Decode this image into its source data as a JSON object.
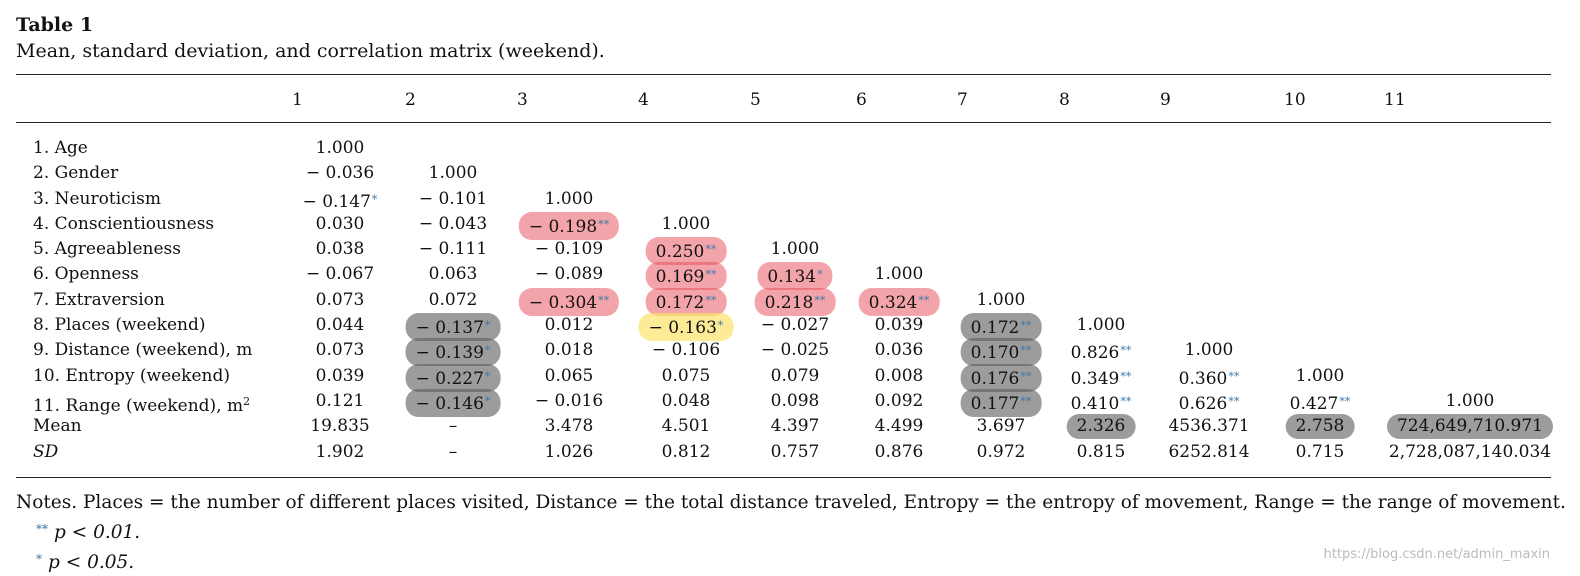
{
  "table": {
    "label": "Table 1",
    "caption": "Mean, standard deviation, and correlation matrix (weekend).",
    "columns": [
      "1",
      "2",
      "3",
      "4",
      "5",
      "6",
      "7",
      "8",
      "9",
      "10",
      "11"
    ],
    "rows": [
      {
        "label": "1. Age",
        "cells": [
          {
            "v": "1.000"
          }
        ]
      },
      {
        "label": "2. Gender",
        "cells": [
          {
            "v": "− 0.036"
          },
          {
            "v": "1.000"
          }
        ]
      },
      {
        "label": "3. Neuroticism",
        "cells": [
          {
            "v": "− 0.147",
            "sig": "*"
          },
          {
            "v": "− 0.101"
          },
          {
            "v": "1.000"
          }
        ]
      },
      {
        "label": "4. Conscientiousness",
        "cells": [
          {
            "v": "0.030"
          },
          {
            "v": "− 0.043"
          },
          {
            "v": "− 0.198",
            "sig": "**",
            "hl": "red"
          },
          {
            "v": "1.000"
          }
        ]
      },
      {
        "label": "5. Agreeableness",
        "cells": [
          {
            "v": "0.038"
          },
          {
            "v": "− 0.111"
          },
          {
            "v": "− 0.109"
          },
          {
            "v": "0.250",
            "sig": "**",
            "hl": "red"
          },
          {
            "v": "1.000"
          }
        ]
      },
      {
        "label": "6. Openness",
        "cells": [
          {
            "v": "− 0.067"
          },
          {
            "v": "0.063"
          },
          {
            "v": "− 0.089"
          },
          {
            "v": "0.169",
            "sig": "**",
            "hl": "red"
          },
          {
            "v": "0.134",
            "sig": "*",
            "hl": "red"
          },
          {
            "v": "1.000"
          }
        ]
      },
      {
        "label": "7. Extraversion",
        "cells": [
          {
            "v": "0.073"
          },
          {
            "v": "0.072"
          },
          {
            "v": "− 0.304",
            "sig": "**",
            "hl": "red"
          },
          {
            "v": "0.172",
            "sig": "**",
            "hl": "red"
          },
          {
            "v": "0.218",
            "sig": "**",
            "hl": "red"
          },
          {
            "v": "0.324",
            "sig": "**",
            "hl": "red"
          },
          {
            "v": "1.000"
          }
        ]
      },
      {
        "label": "8. Places (weekend)",
        "cells": [
          {
            "v": "0.044"
          },
          {
            "v": "− 0.137",
            "sig": "*",
            "hl": "gray"
          },
          {
            "v": "0.012"
          },
          {
            "v": "− 0.163",
            "sig": "*",
            "hl": "yellow"
          },
          {
            "v": "− 0.027"
          },
          {
            "v": "0.039"
          },
          {
            "v": "0.172",
            "sig": "**",
            "hl": "gray"
          },
          {
            "v": "1.000"
          }
        ]
      },
      {
        "label": "9. Distance (weekend), m",
        "cells": [
          {
            "v": "0.073"
          },
          {
            "v": "− 0.139",
            "sig": "*",
            "hl": "gray"
          },
          {
            "v": "0.018"
          },
          {
            "v": "− 0.106"
          },
          {
            "v": "− 0.025"
          },
          {
            "v": "0.036"
          },
          {
            "v": "0.170",
            "sig": "**",
            "hl": "gray"
          },
          {
            "v": "0.826",
            "sig": "**"
          },
          {
            "v": "1.000"
          }
        ]
      },
      {
        "label": "10. Entropy (weekend)",
        "cells": [
          {
            "v": "0.039"
          },
          {
            "v": "− 0.227",
            "sig": "*",
            "hl": "gray"
          },
          {
            "v": "0.065"
          },
          {
            "v": "0.075"
          },
          {
            "v": "0.079"
          },
          {
            "v": "0.008"
          },
          {
            "v": "0.176",
            "sig": "**",
            "hl": "gray"
          },
          {
            "v": "0.349",
            "sig": "**"
          },
          {
            "v": "0.360",
            "sig": "**"
          },
          {
            "v": "1.000"
          }
        ]
      },
      {
        "label": "11. Range (weekend), m",
        "label_sup": "2",
        "cells": [
          {
            "v": "0.121"
          },
          {
            "v": "− 0.146",
            "sig": "*",
            "hl": "gray"
          },
          {
            "v": "− 0.016"
          },
          {
            "v": "0.048"
          },
          {
            "v": "0.098"
          },
          {
            "v": "0.092"
          },
          {
            "v": "0.177",
            "sig": "**",
            "hl": "gray"
          },
          {
            "v": "0.410",
            "sig": "**"
          },
          {
            "v": "0.626",
            "sig": "**"
          },
          {
            "v": "0.427",
            "sig": "**"
          },
          {
            "v": "1.000"
          }
        ]
      },
      {
        "label": "Mean",
        "cells": [
          {
            "v": "19.835"
          },
          {
            "v": "–"
          },
          {
            "v": "3.478"
          },
          {
            "v": "4.501"
          },
          {
            "v": "4.397"
          },
          {
            "v": "4.499"
          },
          {
            "v": "3.697"
          },
          {
            "v": "2.326",
            "hl": "gray"
          },
          {
            "v": "4536.371"
          },
          {
            "v": "2.758",
            "hl": "gray"
          },
          {
            "v": "724,649,710.971",
            "hl": "gray"
          }
        ]
      },
      {
        "label": "SD",
        "italic": true,
        "cells": [
          {
            "v": "1.902"
          },
          {
            "v": "–"
          },
          {
            "v": "1.026"
          },
          {
            "v": "0.812"
          },
          {
            "v": "0.757"
          },
          {
            "v": "0.876"
          },
          {
            "v": "0.972"
          },
          {
            "v": "0.815"
          },
          {
            "v": "6252.814"
          },
          {
            "v": "0.715"
          },
          {
            "v": "2,728,087,140.034"
          }
        ]
      }
    ]
  },
  "notes": {
    "main": "Notes. Places = the number of different places visited, Distance = the total distance traveled, Entropy = the entropy of movement, Range = the range of movement.",
    "sig": [
      {
        "stars": "**",
        "text": "p  <  0.01."
      },
      {
        "stars": "*",
        "text": "p  <  0.05."
      }
    ]
  },
  "watermark": "https://blog.csdn.net/admin_maxin",
  "colors": {
    "highlight_red": "#e84a56",
    "highlight_gray": "#5f5f5f",
    "highlight_yellow": "#fce26c",
    "significance_star": "#3e77a8"
  }
}
